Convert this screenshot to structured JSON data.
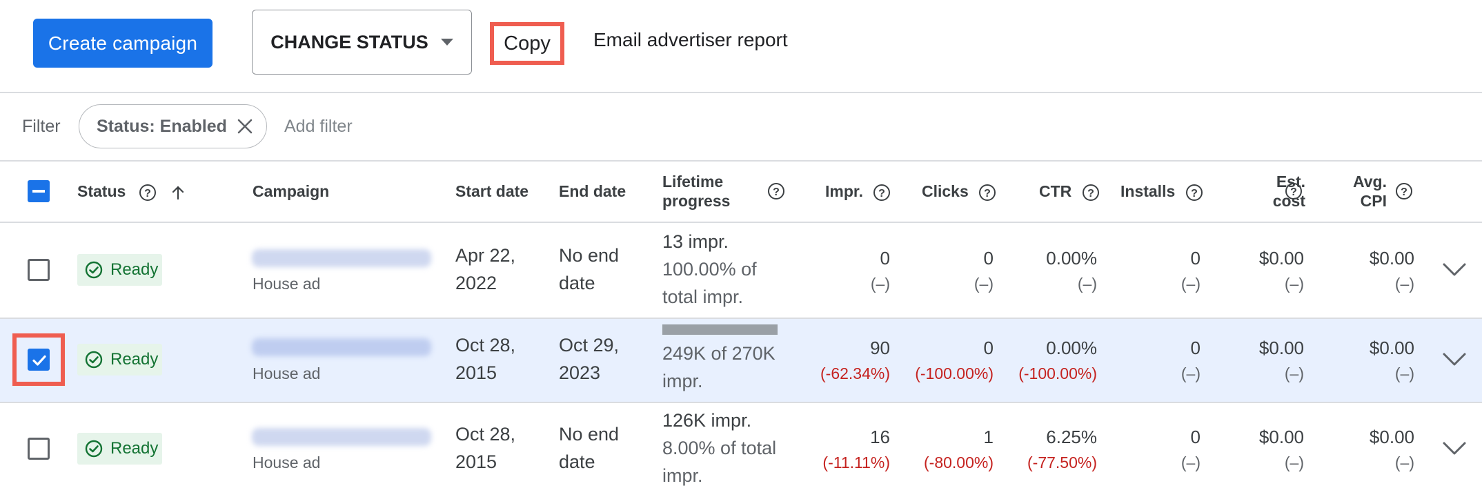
{
  "toolbar": {
    "create_campaign": "Create campaign",
    "change_status": "CHANGE STATUS",
    "copy": "Copy",
    "email_report": "Email advertiser report"
  },
  "filter": {
    "label": "Filter",
    "chip": "Status: Enabled",
    "add_filter": "Add filter"
  },
  "headers": {
    "status": "Status",
    "campaign": "Campaign",
    "start_date": "Start date",
    "end_date": "End date",
    "lifetime_progress": [
      "Lifetime",
      "progress"
    ],
    "impr": "Impr.",
    "clicks": "Clicks",
    "ctr": "CTR",
    "installs": "Installs",
    "est_cost": [
      "Est.",
      "cost"
    ],
    "avg_cpi": [
      "Avg.",
      "CPI"
    ]
  },
  "rows": [
    {
      "selected": false,
      "status": "Ready",
      "campaign_type": "House ad",
      "start_date": [
        "Apr 22,",
        "2022"
      ],
      "end_date": [
        "No end",
        "date"
      ],
      "progress_lines": [
        "13 impr.",
        "100.00% of",
        "total impr."
      ],
      "impr": "0",
      "impr_change": "(–)",
      "clicks": "0",
      "clicks_change": "(–)",
      "ctr": "0.00%",
      "ctr_change": "(–)",
      "installs": "0",
      "installs_change": "(–)",
      "est_cost": "$0.00",
      "est_cost_change": "(–)",
      "avg_cpi": "$0.00",
      "avg_cpi_change": "(–)"
    },
    {
      "selected": true,
      "status": "Ready",
      "campaign_type": "House ad",
      "start_date": [
        "Oct 28,",
        "2015"
      ],
      "end_date": [
        "Oct 29,",
        "2023"
      ],
      "progress_lines": [
        "249K of 270K",
        "impr."
      ],
      "progress_fraction": 0.92,
      "impr": "90",
      "impr_change": "(-62.34%)",
      "clicks": "0",
      "clicks_change": "(-100.00%)",
      "ctr": "0.00%",
      "ctr_change": "(-100.00%)",
      "installs": "0",
      "installs_change": "(–)",
      "est_cost": "$0.00",
      "est_cost_change": "(–)",
      "avg_cpi": "$0.00",
      "avg_cpi_change": "(–)"
    },
    {
      "selected": false,
      "status": "Ready",
      "campaign_type": "House ad",
      "start_date": [
        "Oct 28,",
        "2015"
      ],
      "end_date": [
        "No end",
        "date"
      ],
      "progress_lines": [
        "126K impr.",
        "8.00% of total",
        "impr."
      ],
      "impr": "16",
      "impr_change": "(-11.11%)",
      "clicks": "1",
      "clicks_change": "(-80.00%)",
      "ctr": "6.25%",
      "ctr_change": "(-77.50%)",
      "installs": "0",
      "installs_change": "(–)",
      "est_cost": "$0.00",
      "est_cost_change": "(–)",
      "avg_cpi": "$0.00",
      "avg_cpi_change": "(–)"
    }
  ],
  "colors": {
    "accent": "#1a73e8",
    "highlight": "#ef5d50",
    "status_green": "#137333",
    "negative_red": "#c5221f"
  },
  "icons": [
    "help-icon",
    "sort-arrow-up-icon",
    "close-icon",
    "check-circle-icon",
    "chevron-down-icon",
    "checkbox-checked-icon",
    "dropdown-caret-icon"
  ]
}
